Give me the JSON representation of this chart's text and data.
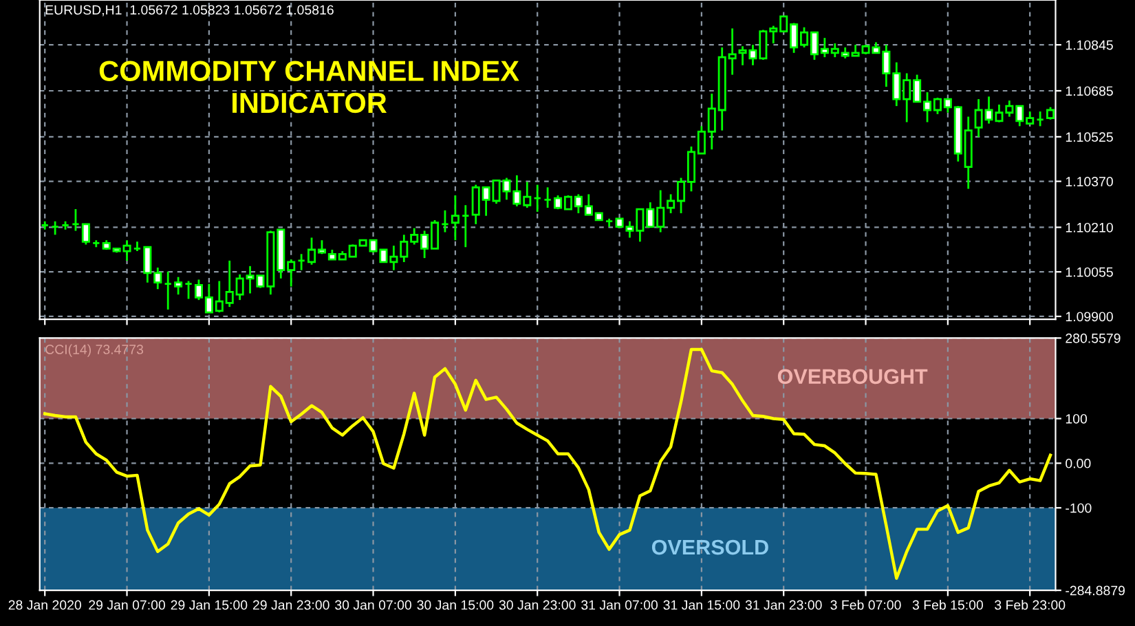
{
  "chart_data": [
    {
      "type": "candlestick",
      "title": "COMMODITY CHANNEL INDEX\nINDICATOR",
      "subtitle": "EURUSD,H1  1.05672 1.05823 1.05672 1.05816",
      "color": "#00ff00",
      "grid": true,
      "tick_labels": "y",
      "categories": [
        null,
        null,
        null,
        null,
        null,
        null,
        null,
        null,
        null,
        null,
        null,
        null,
        null,
        null,
        null,
        null,
        null,
        null,
        null,
        null,
        null,
        null,
        null,
        null,
        null,
        null,
        null,
        null,
        null,
        null,
        null,
        null,
        null,
        null,
        null,
        null,
        null,
        null,
        null,
        null,
        null,
        null,
        null,
        null,
        null,
        null,
        null,
        null,
        null,
        null,
        null,
        null,
        null,
        null,
        null,
        null,
        null,
        null,
        null,
        null,
        null,
        null,
        null,
        null,
        null,
        null,
        null,
        null,
        null,
        null,
        null,
        null,
        null,
        null,
        null,
        null,
        null,
        null,
        null,
        null,
        null,
        null,
        null,
        null,
        null,
        null,
        null,
        null,
        null,
        null,
        null,
        null,
        null,
        null,
        null,
        null,
        null,
        null,
        null
      ],
      "ohlc": [
        [
          1.10217,
          1.10231,
          1.10202,
          1.10217
        ],
        [
          1.10212,
          1.10231,
          1.10184,
          1.10212
        ],
        [
          1.10217,
          1.10231,
          1.10202,
          1.10217
        ],
        [
          1.10221,
          1.10273,
          1.10198,
          1.10221
        ],
        [
          1.10221,
          1.10221,
          1.1015,
          1.1016
        ],
        [
          1.10155,
          1.10165,
          1.10141,
          1.10155
        ],
        [
          1.10155,
          1.10165,
          1.10132,
          1.10136
        ],
        [
          1.10136,
          1.10136,
          1.10122,
          1.10127
        ],
        [
          1.10127,
          1.10165,
          1.10094,
          1.10146
        ],
        [
          1.10136,
          1.1016,
          1.10127,
          1.10136
        ],
        [
          1.10141,
          1.10141,
          1.10018,
          1.10051
        ],
        [
          1.10051,
          1.1007,
          1.09995,
          1.10018
        ],
        [
          1.10013,
          1.10056,
          1.09924,
          1.10013
        ],
        [
          1.10018,
          1.10037,
          1.09976,
          1.10004
        ],
        [
          1.10013,
          1.10023,
          1.09961,
          1.10013
        ],
        [
          1.10009,
          1.10028,
          1.09957,
          1.09966
        ],
        [
          1.09966,
          1.10013,
          1.09914,
          1.09914
        ],
        [
          1.09919,
          1.10023,
          1.09914,
          1.09952
        ],
        [
          1.09947,
          1.10094,
          1.09933,
          1.09985
        ],
        [
          1.09976,
          1.10046,
          1.09957,
          1.10032
        ],
        [
          1.10042,
          1.10075,
          1.0998,
          1.10032
        ],
        [
          1.10042,
          1.10042,
          1.09999,
          1.10004
        ],
        [
          1.10004,
          1.10198,
          1.09976,
          1.10193
        ],
        [
          1.10202,
          1.10202,
          1.10032,
          1.10061
        ],
        [
          1.10061,
          1.10098,
          1.10004,
          1.10089
        ],
        [
          1.10094,
          1.10117,
          1.10061,
          1.10094
        ],
        [
          1.10089,
          1.10174,
          1.1008,
          1.10132
        ],
        [
          1.10132,
          1.10165,
          1.10117,
          1.10122
        ],
        [
          1.10117,
          1.10132,
          1.10098,
          1.10098
        ],
        [
          1.10098,
          1.10127,
          1.10098,
          1.10117
        ],
        [
          1.10108,
          1.1015,
          1.10108,
          1.10146
        ],
        [
          1.10146,
          1.10165,
          1.10146,
          1.10165
        ],
        [
          1.10165,
          1.10165,
          1.10122,
          1.10127
        ],
        [
          1.10132,
          1.10132,
          1.10089,
          1.10089
        ],
        [
          1.10089,
          1.10146,
          1.10061,
          1.10108
        ],
        [
          1.10108,
          1.10184,
          1.10089,
          1.1016
        ],
        [
          1.1016,
          1.10207,
          1.1015,
          1.10184
        ],
        [
          1.10184,
          1.10198,
          1.10103,
          1.10136
        ],
        [
          1.10136,
          1.10235,
          1.10136,
          1.10226
        ],
        [
          1.10221,
          1.10269,
          1.10193,
          1.10221
        ],
        [
          1.10226,
          1.10321,
          1.10165,
          1.1025
        ],
        [
          1.1025,
          1.10287,
          1.10141,
          1.1025
        ],
        [
          1.10254,
          1.10358,
          1.10221,
          1.10349
        ],
        [
          1.10349,
          1.10349,
          1.1025,
          1.10306
        ],
        [
          1.10302,
          1.10373,
          1.10292,
          1.10373
        ],
        [
          1.10373,
          1.10382,
          1.10306,
          1.10335
        ],
        [
          1.10335,
          1.10391,
          1.10283,
          1.10292
        ],
        [
          1.10287,
          1.10368,
          1.10278,
          1.10316
        ],
        [
          1.10311,
          1.10358,
          1.10264,
          1.10311
        ],
        [
          1.10306,
          1.10349,
          1.10278,
          1.10306
        ],
        [
          1.10311,
          1.10321,
          1.10273,
          1.10278
        ],
        [
          1.10273,
          1.10321,
          1.10273,
          1.10316
        ],
        [
          1.10316,
          1.10325,
          1.10259,
          1.10283
        ],
        [
          1.10283,
          1.10325,
          1.10254,
          1.10254
        ],
        [
          1.10259,
          1.10259,
          1.10235,
          1.10235
        ],
        [
          1.10231,
          1.1024,
          1.10212,
          1.10231
        ],
        [
          1.1024,
          1.1024,
          1.10207,
          1.10212
        ],
        [
          1.10212,
          1.10231,
          1.10174,
          1.10198
        ],
        [
          1.10198,
          1.10273,
          1.1016,
          1.10273
        ],
        [
          1.10273,
          1.10297,
          1.10212,
          1.10212
        ],
        [
          1.10212,
          1.10339,
          1.10193,
          1.10278
        ],
        [
          1.10278,
          1.10325,
          1.10259,
          1.10302
        ],
        [
          1.10302,
          1.10382,
          1.10259,
          1.10368
        ],
        [
          1.10368,
          1.10491,
          1.10335,
          1.10472
        ],
        [
          1.10467,
          1.10562,
          1.10467,
          1.10543
        ],
        [
          1.10543,
          1.10675,
          1.10481,
          1.10623
        ],
        [
          1.10618,
          1.10836,
          1.10547,
          1.10802
        ],
        [
          1.10798,
          1.10902,
          1.10741,
          1.10812
        ],
        [
          1.10817,
          1.1084,
          1.10774,
          1.10826
        ],
        [
          1.10826,
          1.10845,
          1.10774,
          1.10798
        ],
        [
          1.10798,
          1.10897,
          1.10793,
          1.10892
        ],
        [
          1.10892,
          1.10911,
          1.1085,
          1.10902
        ],
        [
          1.10892,
          1.10944,
          1.10888,
          1.10944
        ],
        [
          1.10916,
          1.10921,
          1.10817,
          1.10836
        ],
        [
          1.10845,
          1.10906,
          1.10836,
          1.10888
        ],
        [
          1.10888,
          1.10888,
          1.10793,
          1.10812
        ],
        [
          1.10831,
          1.10869,
          1.10802,
          1.10817
        ],
        [
          1.10817,
          1.1085,
          1.10802,
          1.10831
        ],
        [
          1.10817,
          1.10836,
          1.10798,
          1.10807
        ],
        [
          1.10807,
          1.10845,
          1.10807,
          1.10817
        ],
        [
          1.10817,
          1.10845,
          1.10812,
          1.1084
        ],
        [
          1.10836,
          1.10854,
          1.10817,
          1.10817
        ],
        [
          1.10821,
          1.10845,
          1.10699,
          1.10746
        ],
        [
          1.10746,
          1.10784,
          1.10632,
          1.10656
        ],
        [
          1.10656,
          1.10746,
          1.10576,
          1.10722
        ],
        [
          1.10722,
          1.10741,
          1.10647,
          1.10647
        ],
        [
          1.10647,
          1.1068,
          1.10576,
          1.10618
        ],
        [
          1.10618,
          1.10661,
          1.10604,
          1.10656
        ],
        [
          1.10656,
          1.10656,
          1.10609,
          1.10628
        ],
        [
          1.10628,
          1.10632,
          1.10439,
          1.10467
        ],
        [
          1.1042,
          1.10595,
          1.10344,
          1.10547
        ],
        [
          1.10557,
          1.10656,
          1.10524,
          1.10618
        ],
        [
          1.10618,
          1.10665,
          1.10571,
          1.10585
        ],
        [
          1.1058,
          1.10637,
          1.10576,
          1.10609
        ],
        [
          1.10609,
          1.10651,
          1.10595,
          1.10632
        ],
        [
          1.10632,
          1.10632,
          1.10562,
          1.1058
        ],
        [
          1.10571,
          1.10613,
          1.10571,
          1.1059
        ],
        [
          1.10585,
          1.10613,
          1.10562,
          1.10585
        ],
        [
          1.1059,
          1.10628,
          1.10585,
          1.10618
        ]
      ],
      "ylim": [
        1.0989,
        1.11001
      ],
      "yticks": [
        {
          "value": 1.099,
          "label": "1.09900"
        },
        {
          "value": 1.10055,
          "label": "1.10055"
        },
        {
          "value": 1.1021,
          "label": "1.10210"
        },
        {
          "value": 1.1037,
          "label": "1.10370"
        },
        {
          "value": 1.10525,
          "label": "1.10525"
        },
        {
          "value": 1.10685,
          "label": "1.10685"
        },
        {
          "value": 1.10845,
          "label": "1.10845"
        }
      ]
    },
    {
      "type": "line",
      "grid": true,
      "annotations": [
        "CCI(14) 73.4773"
      ],
      "categories": [
        "28 Jan 2020",
        null,
        null,
        null,
        null,
        null,
        null,
        null,
        "29 Jan 07:00",
        null,
        null,
        null,
        null,
        null,
        null,
        null,
        "29 Jan 15:00",
        null,
        null,
        null,
        null,
        null,
        null,
        null,
        "29 Jan 23:00",
        null,
        null,
        null,
        null,
        null,
        null,
        null,
        "30 Jan 07:00",
        null,
        null,
        null,
        null,
        null,
        null,
        null,
        "30 Jan 15:00",
        null,
        null,
        null,
        null,
        null,
        null,
        null,
        "30 Jan 23:00",
        null,
        null,
        null,
        null,
        null,
        null,
        null,
        "31 Jan 07:00",
        null,
        null,
        null,
        null,
        null,
        null,
        null,
        "31 Jan 15:00",
        null,
        null,
        null,
        null,
        null,
        null,
        null,
        "31 Jan 23:00",
        null,
        null,
        null,
        null,
        null,
        null,
        null,
        "3 Feb 07:00",
        null,
        null,
        null,
        null,
        null,
        null,
        null,
        "3 Feb 15:00",
        null,
        null,
        null,
        null,
        null,
        null,
        null,
        "3 Feb 23:00",
        null,
        null
      ],
      "series": [
        {
          "color": "#ffff00",
          "values": [
            111,
            107,
            104,
            104,
            47,
            21,
            7,
            -20,
            -29,
            -27,
            -150,
            -198,
            -181,
            -134,
            -114,
            -102,
            -116,
            -92,
            -46,
            -30,
            -6,
            -4,
            172,
            150,
            93,
            110,
            129,
            114,
            79,
            63,
            84,
            102,
            71,
            -1,
            -11,
            66,
            157,
            63,
            193,
            212,
            177,
            119,
            186,
            143,
            148,
            121,
            90,
            76,
            63,
            50,
            21,
            21,
            -10,
            -59,
            -155,
            -193,
            -160,
            -150,
            -73,
            -62,
            4,
            37,
            138,
            255,
            255,
            207,
            203,
            177,
            140,
            107,
            105,
            100,
            98,
            66,
            65,
            42,
            39,
            23,
            -1,
            -22,
            -23,
            -25,
            -140,
            -258,
            -198,
            -148,
            -148,
            -107,
            -95,
            -155,
            -145,
            -63,
            -51,
            -44,
            -16,
            -42,
            -35,
            -39,
            18
          ]
        }
      ],
      "ylim": [
        -284.8879,
        280.5579
      ],
      "yticks": [
        {
          "value": -284.8879,
          "label": "-284.8879"
        },
        -100,
        {
          "value": 0,
          "label": "0.00"
        },
        100,
        {
          "value": 280.5579,
          "label": "280.5579"
        }
      ],
      "bands": [
        {
          "axis": "y",
          "from": 100,
          "to": 280.5579,
          "label": "OVERBOUGHT",
          "color": "#975656"
        },
        {
          "axis": "y",
          "from": -284.8879,
          "to": -100,
          "label": "OVERSOLD",
          "color": "#145a84"
        }
      ]
    }
  ]
}
